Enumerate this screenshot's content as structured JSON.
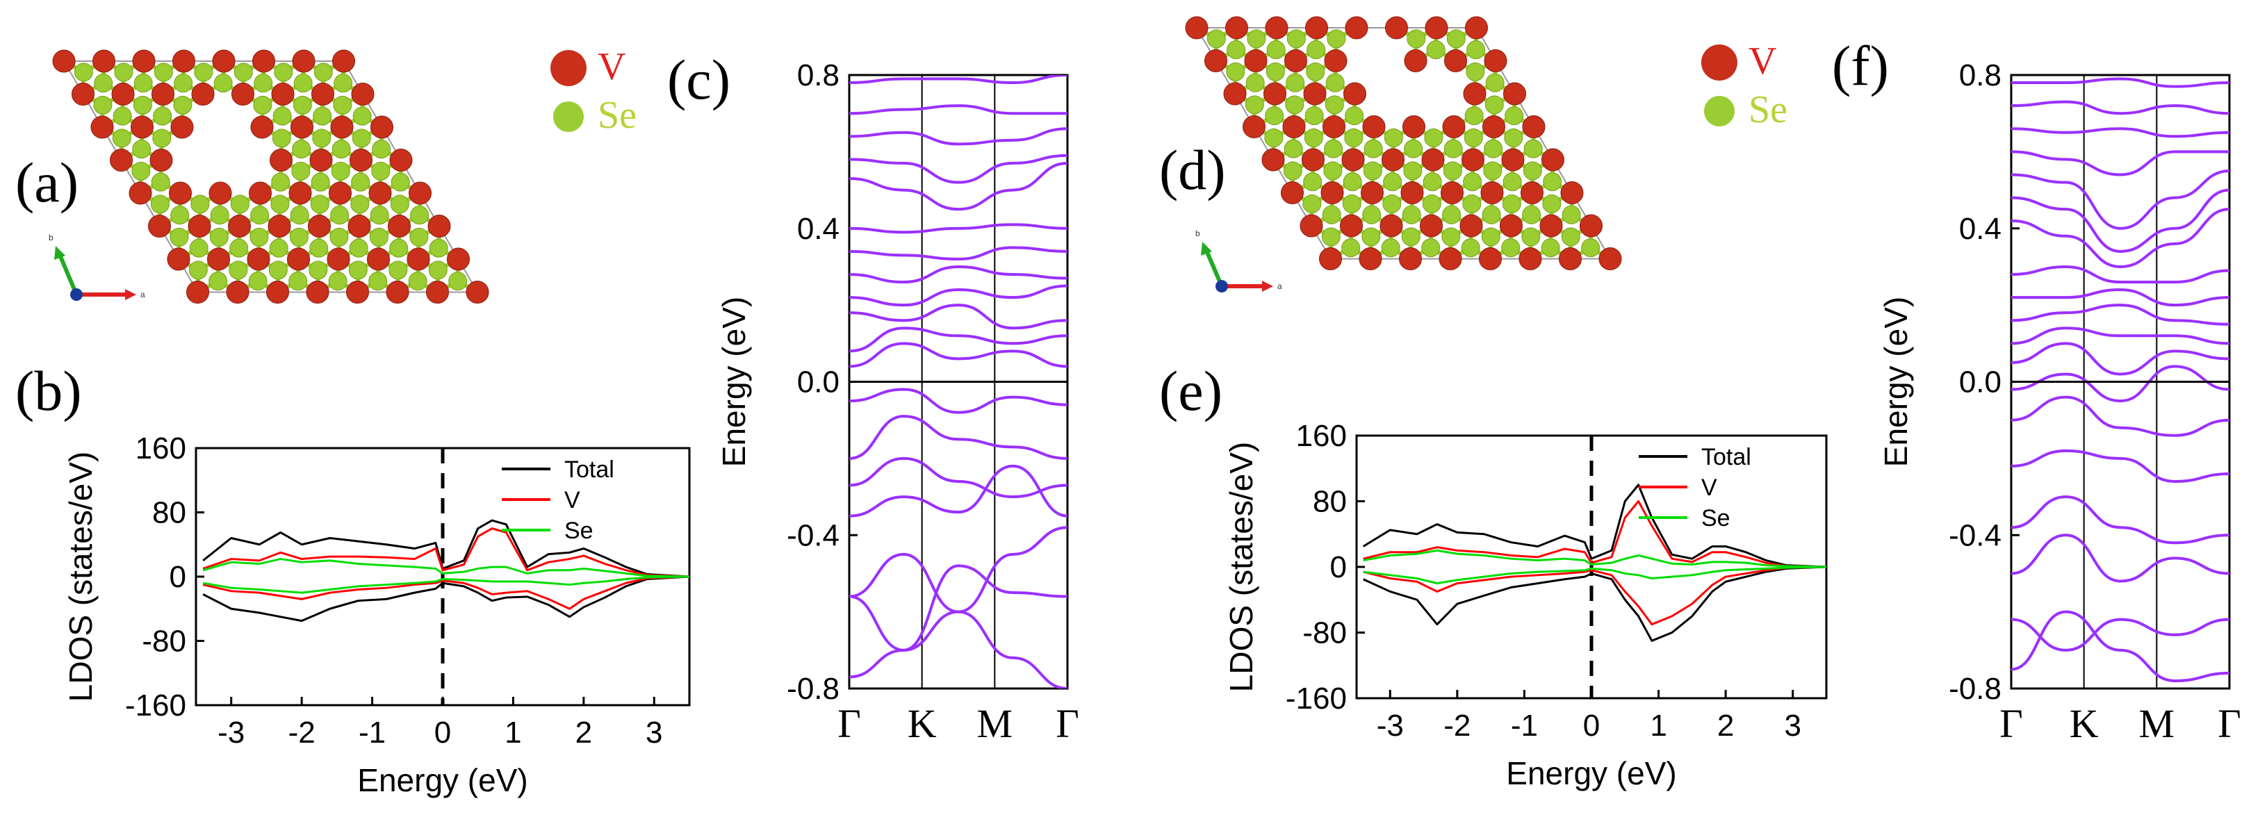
{
  "panels": {
    "a": {
      "label": "(a)"
    },
    "b": {
      "label": "(b)"
    },
    "c": {
      "label": "(c)"
    },
    "d": {
      "label": "(d)"
    },
    "e": {
      "label": "(e)"
    },
    "f": {
      "label": "(f)"
    }
  },
  "lattice_legend": {
    "V": {
      "label": "V",
      "color": "#c8301c"
    },
    "Se": {
      "label": "Se",
      "color": "#9acd32"
    }
  },
  "crystal_axes": {
    "a": "a",
    "b": "b"
  },
  "chart_data": [
    {
      "id": "b",
      "type": "line",
      "title": "",
      "xlabel": "Energy (eV)",
      "ylabel": "LDOS (states/eV)",
      "xlim": [
        -3.5,
        3.5
      ],
      "ylim": [
        -160,
        160
      ],
      "xticks": [
        "-3",
        "-2",
        "-1",
        "0",
        "1",
        "2",
        "3"
      ],
      "yticks": [
        "160",
        "80",
        "0",
        "-80",
        "-160"
      ],
      "fermi_line_at": 0,
      "series": [
        {
          "name": "Total",
          "color": "#000000",
          "x": [
            -3.4,
            -3.0,
            -2.6,
            -2.3,
            -2.0,
            -1.6,
            -1.2,
            -0.8,
            -0.4,
            -0.1,
            0.0,
            0.3,
            0.5,
            0.7,
            0.9,
            1.2,
            1.5,
            1.8,
            2.0,
            2.3,
            2.6,
            2.9,
            3.5
          ],
          "up": [
            20,
            48,
            40,
            55,
            40,
            48,
            44,
            40,
            35,
            42,
            10,
            20,
            60,
            70,
            65,
            12,
            28,
            30,
            35,
            24,
            12,
            3,
            0
          ],
          "down": [
            -22,
            -40,
            -45,
            -50,
            -55,
            -40,
            -30,
            -28,
            -20,
            -15,
            -8,
            -12,
            -20,
            -30,
            -26,
            -25,
            -35,
            -50,
            -38,
            -26,
            -12,
            -3,
            0
          ]
        },
        {
          "name": "V",
          "color": "#ff0000",
          "x": [
            -3.4,
            -3.0,
            -2.6,
            -2.3,
            -2.0,
            -1.6,
            -1.2,
            -0.8,
            -0.4,
            -0.1,
            0.0,
            0.3,
            0.5,
            0.7,
            0.9,
            1.2,
            1.5,
            1.8,
            2.0,
            2.3,
            2.6,
            2.9,
            3.5
          ],
          "up": [
            10,
            22,
            20,
            30,
            22,
            25,
            25,
            24,
            22,
            35,
            8,
            15,
            50,
            60,
            55,
            8,
            18,
            22,
            26,
            16,
            8,
            2,
            0
          ],
          "down": [
            -10,
            -18,
            -20,
            -24,
            -28,
            -20,
            -16,
            -14,
            -10,
            -8,
            -5,
            -8,
            -14,
            -22,
            -20,
            -18,
            -28,
            -40,
            -28,
            -18,
            -8,
            -2,
            0
          ]
        },
        {
          "name": "Se",
          "color": "#00dd00",
          "x": [
            -3.4,
            -3.0,
            -2.6,
            -2.3,
            -2.0,
            -1.6,
            -1.2,
            -0.8,
            -0.4,
            -0.1,
            0.0,
            0.3,
            0.5,
            0.7,
            0.9,
            1.2,
            1.5,
            1.8,
            2.0,
            2.3,
            2.6,
            2.9,
            3.5
          ],
          "up": [
            8,
            18,
            16,
            22,
            18,
            20,
            16,
            14,
            12,
            10,
            4,
            6,
            10,
            12,
            12,
            4,
            8,
            8,
            10,
            7,
            4,
            1,
            0
          ],
          "down": [
            -8,
            -14,
            -16,
            -18,
            -20,
            -16,
            -12,
            -10,
            -8,
            -6,
            -3,
            -4,
            -5,
            -6,
            -6,
            -6,
            -8,
            -10,
            -8,
            -6,
            -3,
            -1,
            0
          ]
        }
      ]
    },
    {
      "id": "c",
      "type": "line",
      "title": "",
      "xlabel": "",
      "ylabel": "Energy (eV)",
      "ylim": [
        -0.8,
        0.8
      ],
      "kpoints": [
        "Γ",
        "K",
        "M",
        "Γ"
      ],
      "yticks": [
        "0.8",
        "0.4",
        "0.0",
        "-0.4",
        "-0.8"
      ],
      "fermi_line_at": 0,
      "band_color": "#9b30ff",
      "bands": [
        [
          -0.77,
          -0.7,
          -0.6,
          -0.72,
          -0.8
        ],
        [
          -0.56,
          -0.7,
          -0.48,
          -0.55,
          -0.56
        ],
        [
          -0.56,
          -0.45,
          -0.6,
          -0.45,
          -0.38
        ],
        [
          -0.35,
          -0.3,
          -0.34,
          -0.22,
          -0.35
        ],
        [
          -0.27,
          -0.2,
          -0.26,
          -0.3,
          -0.27
        ],
        [
          -0.2,
          -0.09,
          -0.15,
          -0.17,
          -0.2
        ],
        [
          -0.05,
          -0.02,
          -0.08,
          -0.04,
          -0.06
        ],
        [
          0.04,
          0.1,
          0.06,
          0.08,
          0.04
        ],
        [
          0.08,
          0.14,
          0.12,
          0.1,
          0.12
        ],
        [
          0.18,
          0.16,
          0.2,
          0.14,
          0.16
        ],
        [
          0.22,
          0.2,
          0.24,
          0.22,
          0.25
        ],
        [
          0.28,
          0.26,
          0.3,
          0.28,
          0.27
        ],
        [
          0.34,
          0.33,
          0.32,
          0.35,
          0.34
        ],
        [
          0.4,
          0.39,
          0.4,
          0.41,
          0.4
        ],
        [
          0.53,
          0.5,
          0.45,
          0.5,
          0.57
        ],
        [
          0.58,
          0.57,
          0.52,
          0.57,
          0.59
        ],
        [
          0.64,
          0.65,
          0.62,
          0.63,
          0.66
        ],
        [
          0.7,
          0.71,
          0.72,
          0.7,
          0.7
        ],
        [
          0.78,
          0.79,
          0.79,
          0.78,
          0.8
        ]
      ]
    },
    {
      "id": "e",
      "type": "line",
      "title": "",
      "xlabel": "Energy (eV)",
      "ylabel": "LDOS (states/eV)",
      "xlim": [
        -3.5,
        3.5
      ],
      "ylim": [
        -160,
        160
      ],
      "xticks": [
        "-3",
        "-2",
        "-1",
        "0",
        "1",
        "2",
        "3"
      ],
      "yticks": [
        "160",
        "80",
        "0",
        "-80",
        "-160"
      ],
      "fermi_line_at": 0,
      "series": [
        {
          "name": "Total",
          "color": "#000000",
          "x": [
            -3.4,
            -3.0,
            -2.6,
            -2.3,
            -2.0,
            -1.6,
            -1.2,
            -0.8,
            -0.4,
            -0.1,
            0.0,
            0.3,
            0.5,
            0.7,
            0.9,
            1.2,
            1.5,
            1.8,
            2.0,
            2.3,
            2.6,
            2.9,
            3.5
          ],
          "up": [
            25,
            45,
            40,
            52,
            42,
            40,
            30,
            25,
            38,
            30,
            10,
            20,
            80,
            100,
            60,
            15,
            10,
            25,
            25,
            18,
            8,
            2,
            0
          ],
          "down": [
            -15,
            -30,
            -40,
            -70,
            -45,
            -35,
            -25,
            -20,
            -15,
            -12,
            -8,
            -15,
            -40,
            -60,
            -90,
            -80,
            -60,
            -30,
            -18,
            -12,
            -6,
            -2,
            0
          ]
        },
        {
          "name": "V",
          "color": "#ff0000",
          "x": [
            -3.4,
            -3.0,
            -2.6,
            -2.3,
            -2.0,
            -1.6,
            -1.2,
            -0.8,
            -0.4,
            -0.1,
            0.0,
            0.3,
            0.5,
            0.7,
            0.9,
            1.2,
            1.5,
            1.8,
            2.0,
            2.3,
            2.6,
            2.9,
            3.5
          ],
          "up": [
            10,
            18,
            18,
            24,
            20,
            18,
            14,
            12,
            22,
            18,
            5,
            12,
            60,
            80,
            50,
            10,
            6,
            18,
            18,
            12,
            5,
            1,
            0
          ],
          "down": [
            -6,
            -14,
            -18,
            -30,
            -20,
            -16,
            -12,
            -10,
            -8,
            -6,
            -4,
            -10,
            -30,
            -48,
            -70,
            -60,
            -45,
            -22,
            -12,
            -8,
            -4,
            -1,
            0
          ]
        },
        {
          "name": "Se",
          "color": "#00dd00",
          "x": [
            -3.4,
            -3.0,
            -2.6,
            -2.3,
            -2.0,
            -1.6,
            -1.2,
            -0.8,
            -0.4,
            -0.1,
            0.0,
            0.3,
            0.5,
            0.7,
            0.9,
            1.2,
            1.5,
            1.8,
            2.0,
            2.3,
            2.6,
            2.9,
            3.5
          ],
          "up": [
            8,
            14,
            16,
            20,
            16,
            14,
            10,
            8,
            10,
            8,
            3,
            5,
            10,
            14,
            10,
            4,
            3,
            6,
            6,
            5,
            2,
            1,
            0
          ],
          "down": [
            -6,
            -10,
            -14,
            -20,
            -16,
            -12,
            -8,
            -6,
            -5,
            -4,
            -2,
            -4,
            -8,
            -10,
            -14,
            -12,
            -10,
            -6,
            -4,
            -3,
            -2,
            -1,
            0
          ]
        }
      ]
    },
    {
      "id": "f",
      "type": "line",
      "title": "",
      "xlabel": "",
      "ylabel": "Energy (eV)",
      "ylim": [
        -0.8,
        0.8
      ],
      "kpoints": [
        "Γ",
        "K",
        "M",
        "Γ"
      ],
      "yticks": [
        "0.8",
        "0.4",
        "0.0",
        "-0.4",
        "-0.8"
      ],
      "fermi_line_at": 0,
      "band_color": "#9b30ff",
      "bands": [
        [
          -0.75,
          -0.6,
          -0.7,
          -0.78,
          -0.76
        ],
        [
          -0.62,
          -0.7,
          -0.62,
          -0.66,
          -0.62
        ],
        [
          -0.5,
          -0.4,
          -0.52,
          -0.46,
          -0.5
        ],
        [
          -0.38,
          -0.3,
          -0.38,
          -0.42,
          -0.4
        ],
        [
          -0.22,
          -0.18,
          -0.2,
          -0.26,
          -0.24
        ],
        [
          -0.1,
          -0.04,
          -0.12,
          -0.14,
          -0.1
        ],
        [
          -0.02,
          0.02,
          -0.05,
          0.04,
          -0.02
        ],
        [
          0.05,
          0.1,
          0.02,
          0.08,
          0.06
        ],
        [
          0.1,
          0.14,
          0.12,
          0.12,
          0.1
        ],
        [
          0.16,
          0.18,
          0.2,
          0.16,
          0.15
        ],
        [
          0.22,
          0.22,
          0.24,
          0.2,
          0.22
        ],
        [
          0.28,
          0.3,
          0.26,
          0.26,
          0.29
        ],
        [
          0.42,
          0.38,
          0.3,
          0.36,
          0.45
        ],
        [
          0.48,
          0.45,
          0.34,
          0.4,
          0.5
        ],
        [
          0.54,
          0.52,
          0.4,
          0.48,
          0.55
        ],
        [
          0.6,
          0.58,
          0.54,
          0.6,
          0.6
        ],
        [
          0.66,
          0.65,
          0.66,
          0.64,
          0.65
        ],
        [
          0.72,
          0.73,
          0.7,
          0.72,
          0.7
        ],
        [
          0.78,
          0.78,
          0.79,
          0.77,
          0.78
        ]
      ]
    }
  ]
}
